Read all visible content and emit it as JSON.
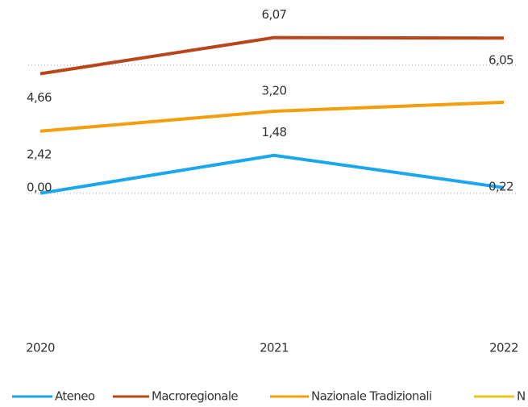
{
  "chart_data": {
    "type": "line",
    "categories": [
      "2020",
      "2021",
      "2022"
    ],
    "series": [
      {
        "name": "Ateneo",
        "color": "#1aa7ee",
        "values": [
          0.0,
          1.48,
          0.22
        ],
        "value_labels": [
          "0,00",
          "1,48",
          "0,22"
        ]
      },
      {
        "name": "Macroregionale",
        "color": "#b8461b",
        "values": [
          4.66,
          6.07,
          6.05
        ],
        "value_labels": [
          "4,66",
          "6,07",
          "6,05"
        ]
      },
      {
        "name": "Nazionale Tradizionali",
        "color": "#f59e0b",
        "values": [
          2.42,
          3.2,
          3.55
        ],
        "value_labels": [
          "2,42",
          "3,20",
          null
        ]
      },
      {
        "name": "N",
        "color": "#e6c619",
        "values": [
          null,
          null,
          null
        ]
      }
    ],
    "ylim": [
      -5,
      7
    ],
    "yticks": [
      0,
      5
    ],
    "grid": true,
    "legend": "bottom"
  }
}
